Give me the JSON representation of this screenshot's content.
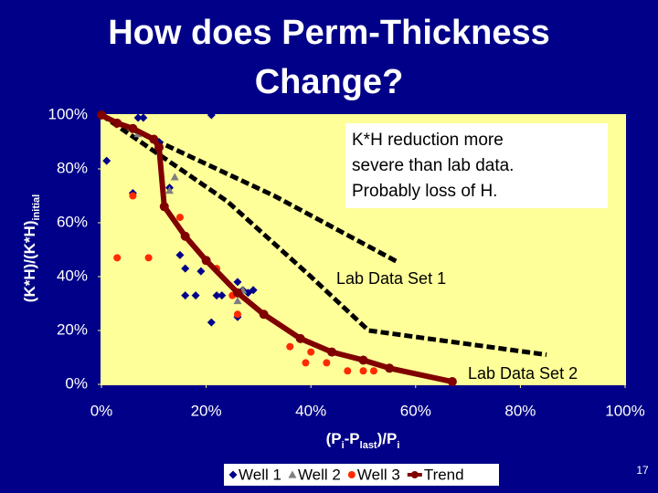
{
  "chart_data": {
    "type": "scatter",
    "title": [
      "How does Perm-Thickness",
      "Change?"
    ],
    "y_label": [
      {
        "text": "(K*H)/(K*H)"
      },
      {
        "text": "initial",
        "sub": true
      }
    ],
    "x_label": [
      {
        "text": "(P"
      },
      {
        "text": "i",
        "sub": true
      },
      {
        "text": "-P"
      },
      {
        "text": "last",
        "sub": true
      },
      {
        "text": ")/P"
      },
      {
        "text": "i",
        "sub": true
      }
    ],
    "xlim": [
      0,
      100
    ],
    "ylim": [
      0,
      100
    ],
    "xticks": [
      {
        "value": 0,
        "label": "0%"
      },
      {
        "value": 20,
        "label": "20%"
      },
      {
        "value": 40,
        "label": "40%"
      },
      {
        "value": 60,
        "label": "60%"
      },
      {
        "value": 80,
        "label": "80%"
      },
      {
        "value": 100,
        "label": "100%"
      }
    ],
    "yticks": [
      {
        "value": 0,
        "label": "0%"
      },
      {
        "value": 20,
        "label": "20%"
      },
      {
        "value": 40,
        "label": "40%"
      },
      {
        "value": 60,
        "label": "60%"
      },
      {
        "value": 80,
        "label": "80%"
      },
      {
        "value": 100,
        "label": "100%"
      }
    ],
    "plot_background": "#ffff99",
    "series": [
      {
        "name": "Well 1",
        "color": "#00008b",
        "marker": "diamond",
        "x": [
          1,
          6,
          7,
          8,
          11,
          13,
          15,
          16,
          16,
          18,
          19,
          21,
          21,
          22,
          23,
          26,
          26,
          27,
          28,
          29
        ],
        "values": [
          83,
          71,
          99,
          99,
          90,
          73,
          48,
          43,
          33,
          33,
          42,
          100,
          23,
          33,
          33,
          38,
          25,
          35,
          34,
          35
        ]
      },
      {
        "name": "Well 2",
        "color": "#808080",
        "marker": "triangle",
        "x": [
          7,
          13,
          14,
          26,
          27
        ],
        "values": [
          93,
          72,
          77,
          31,
          35
        ]
      },
      {
        "name": "Well 3",
        "color": "#ff2a00",
        "marker": "circle",
        "x": [
          3,
          6,
          9,
          15,
          22,
          25,
          26,
          36,
          39,
          40,
          43,
          47,
          50,
          52
        ],
        "values": [
          47,
          70,
          47,
          62,
          43,
          33,
          26,
          14,
          8,
          12,
          8,
          5,
          5,
          5
        ]
      },
      {
        "name": "Trend",
        "color": "#800000",
        "marker": "line",
        "x": [
          0,
          3,
          6,
          10,
          11,
          12,
          16,
          20,
          26,
          31,
          38,
          44,
          50,
          55,
          67
        ],
        "values": [
          100,
          97,
          95,
          91,
          88,
          66,
          55,
          46,
          34,
          26,
          17,
          12,
          9,
          6,
          1
        ]
      }
    ],
    "lab_curves": [
      {
        "label": "Lab Data Set 1",
        "x": [
          0,
          33,
          56.5
        ],
        "values": [
          100,
          70,
          45.5
        ]
      },
      {
        "label": "Lab Data Set 2",
        "x": [
          0,
          24,
          40,
          51,
          85
        ],
        "values": [
          100,
          68,
          40,
          20,
          11
        ]
      }
    ],
    "callout": [
      "K*H reduction more",
      "severe than lab data.",
      "Probably loss of H."
    ],
    "page_number": "17"
  }
}
